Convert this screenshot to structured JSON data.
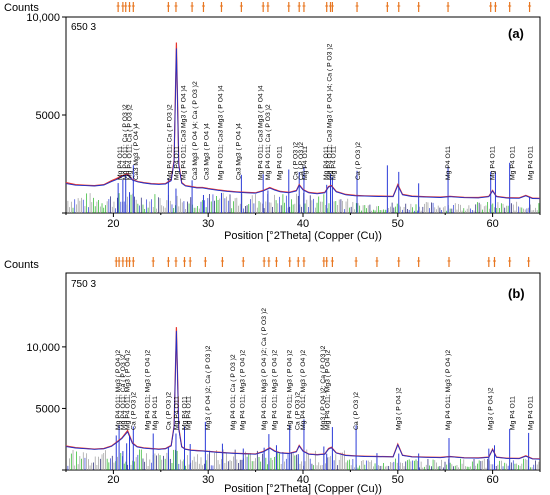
{
  "colors": {
    "frame": "#000000",
    "pattern_ticks": "#e87722",
    "observed": "#e8352c",
    "calculated": "#2030c8",
    "ref_gray": "#9a9a9a",
    "ref_green": "#22b422",
    "ref_blue": "#2a3ad8",
    "ref_navy": "#1a1a70",
    "background": "#ffffff"
  },
  "chart_data": [
    {
      "type": "line",
      "panel_label": "(a)",
      "sample_label": "650 3",
      "title": "",
      "ylabel": "Counts",
      "xlabel": "Position [°2Theta] (Copper (Cu))",
      "xlim": [
        15,
        65
      ],
      "ylim": [
        0,
        10000
      ],
      "x_ticks": [
        "20",
        "30",
        "40",
        "50",
        "60"
      ],
      "y_ticks": [
        "5000",
        "10,000"
      ],
      "grid": false,
      "pattern_ticks": [
        20.5,
        21,
        21.3,
        21.7,
        22.1,
        25.8,
        26.6,
        28.3,
        29.5,
        31.4,
        33.5,
        35.8,
        36.3,
        38.5,
        39.6,
        40.1,
        42.5,
        42.9,
        43.1,
        45.7,
        48.9,
        50.1,
        52.2,
        55.3,
        59.8,
        60.3,
        61.8,
        63.9
      ],
      "series": [
        {
          "role": "observed",
          "x": [
            15,
            16,
            17,
            18,
            19,
            19.8,
            20.3,
            20.9,
            21.5,
            22,
            22.6,
            23.2,
            24,
            24.8,
            25.5,
            26.1,
            26.4,
            26.65,
            26.9,
            27.2,
            27.6,
            28.2,
            28.8,
            29.4,
            30,
            31,
            32,
            33,
            34,
            35,
            35.8,
            36.5,
            37,
            37.6,
            38.5,
            39.3,
            39.6,
            40,
            40.6,
            41.5,
            42.3,
            42.7,
            43,
            43.5,
            44.5,
            45.5,
            46.5,
            48,
            49.5,
            50,
            50.5,
            51.5,
            53,
            54.5,
            55.5,
            57,
            58.5,
            59.6,
            60,
            60.4,
            61.5,
            62.8,
            63.5,
            64.2,
            65
          ],
          "y": [
            1550,
            1450,
            1420,
            1400,
            1450,
            1650,
            1750,
            1900,
            2000,
            1700,
            1600,
            1550,
            1500,
            1480,
            1500,
            1700,
            2700,
            8700,
            2500,
            1550,
            1400,
            1350,
            1300,
            1300,
            1250,
            1180,
            1120,
            1080,
            1050,
            1030,
            1150,
            1300,
            1200,
            1100,
            1050,
            1150,
            1450,
            1200,
            1050,
            1000,
            1050,
            1350,
            1400,
            1100,
            950,
            900,
            880,
            860,
            850,
            1450,
            950,
            860,
            830,
            810,
            850,
            800,
            790,
            850,
            1150,
            850,
            780,
            770,
            900,
            760,
            750
          ]
        },
        {
          "role": "calculated",
          "x": [
            15,
            16,
            17,
            18,
            19,
            19.8,
            20.3,
            20.9,
            21.5,
            22,
            22.6,
            23.2,
            24,
            24.8,
            25.5,
            26.1,
            26.4,
            26.65,
            26.9,
            27.2,
            27.6,
            28.2,
            28.8,
            29.4,
            30,
            31,
            32,
            33,
            34,
            35,
            35.8,
            36.5,
            37,
            37.6,
            38.5,
            39.3,
            39.6,
            40,
            40.6,
            41.5,
            42.3,
            42.7,
            43,
            43.5,
            44.5,
            45.5,
            46.5,
            48,
            49.5,
            50,
            50.5,
            51.5,
            53,
            54.5,
            55.5,
            57,
            58.5,
            59.6,
            60,
            60.4,
            61.5,
            62.8,
            63.5,
            64.2,
            65
          ],
          "y": [
            1500,
            1420,
            1400,
            1380,
            1430,
            1600,
            1700,
            1850,
            1950,
            1680,
            1580,
            1530,
            1480,
            1460,
            1480,
            1650,
            2600,
            8400,
            2400,
            1520,
            1380,
            1330,
            1280,
            1280,
            1230,
            1160,
            1100,
            1060,
            1030,
            1010,
            1120,
            1270,
            1170,
            1080,
            1030,
            1120,
            1420,
            1180,
            1030,
            980,
            1030,
            1320,
            1370,
            1080,
            930,
            880,
            860,
            840,
            830,
            1400,
            930,
            840,
            810,
            790,
            830,
            780,
            770,
            830,
            1120,
            830,
            760,
            750,
            880,
            740,
            730
          ]
        }
      ],
      "peak_labels": [
        {
          "x": 20.7,
          "text": "Mg P4 O11"
        },
        {
          "x": 21.2,
          "text": "Mg P4 O11; Ca ( P O3 )2"
        },
        {
          "x": 21.7,
          "text": "Mg P4 O11; Ca ( P O3 )2"
        },
        {
          "x": 22.4,
          "text": "Ca3 Mg3 ( P O4 )4"
        },
        {
          "x": 25.9,
          "text": "Mg P4 O11; Ca ( P O3 )2"
        },
        {
          "x": 26.65,
          "text": "Mg P4 O11"
        },
        {
          "x": 27.4,
          "text": "Mg P4 O11; Ca3 Mg3 ( P O4 )4"
        },
        {
          "x": 28.6,
          "text": "Ca3 Mg3 ( P O4 )4; Ca ( P O3 )2"
        },
        {
          "x": 29.8,
          "text": "Ca3 Mg3 ( P O4 )4"
        },
        {
          "x": 31.3,
          "text": "Mg P4 O11; Ca3 Mg3 ( P O4 )4"
        },
        {
          "x": 33.2,
          "text": "Ca3 Mg3 ( P O4 )4"
        },
        {
          "x": 35.5,
          "text": "Mg P4 O11; Ca3 Mg3 ( P O4 )4"
        },
        {
          "x": 36.3,
          "text": "Mg P4 O11; Ca ( P O3 )2"
        },
        {
          "x": 37.5,
          "text": "Mg P4 O11"
        },
        {
          "x": 39.2,
          "text": "Ca ( P O3 )2"
        },
        {
          "x": 39.8,
          "text": "Ca ( P O3 )2"
        },
        {
          "x": 40.2,
          "text": "Mg P4 O11"
        },
        {
          "x": 42.4,
          "text": "Mg P4 O11"
        },
        {
          "x": 42.8,
          "text": "Mg P4 O11; Ca3 Mg3 ( P O4 )4; Ca ( P O3 )2"
        },
        {
          "x": 43.2,
          "text": "Mg P4 O11"
        },
        {
          "x": 45.8,
          "text": "Ca ( P O3 )2"
        },
        {
          "x": 55.3,
          "text": "Mg P4 O11"
        },
        {
          "x": 60.0,
          "text": "Mg P4 O11"
        },
        {
          "x": 62.1,
          "text": "Mg P4 O11"
        },
        {
          "x": 64.0,
          "text": "Mg P4 O11"
        }
      ]
    },
    {
      "type": "line",
      "panel_label": "(b)",
      "sample_label": "750 3",
      "title": "",
      "ylabel": "Counts",
      "xlabel": "Position [°2Theta] (Copper (Cu))",
      "xlim": [
        15,
        65
      ],
      "ylim": [
        0,
        16000
      ],
      "x_ticks": [
        "20",
        "30",
        "40",
        "50",
        "60"
      ],
      "y_ticks": [
        "5000",
        "10,000"
      ],
      "grid": false,
      "pattern_ticks": [
        20.3,
        20.6,
        21,
        21.4,
        21.7,
        22.1,
        24.2,
        25.8,
        26.6,
        27.5,
        28.1,
        29.7,
        31.5,
        33.7,
        35.9,
        36.4,
        37.2,
        38.6,
        39.5,
        40.1,
        42.2,
        42.5,
        43.1,
        45.6,
        47.8,
        50.1,
        52.2,
        55.4,
        59.6,
        60.2,
        61.8,
        63.8
      ],
      "series": [
        {
          "role": "observed",
          "x": [
            15,
            16,
            17,
            18,
            19,
            19.8,
            20.4,
            20.9,
            21.5,
            22,
            22.5,
            23.2,
            24,
            24.8,
            25.5,
            26.1,
            26.4,
            26.65,
            26.9,
            27.2,
            27.6,
            28.2,
            28.8,
            29.4,
            30,
            31,
            32,
            33,
            34,
            35,
            35.8,
            36.5,
            37,
            37.6,
            38.5,
            39.3,
            39.6,
            40,
            40.6,
            41.5,
            42.3,
            42.7,
            43,
            43.5,
            44.5,
            45.5,
            46.5,
            48,
            49.5,
            50,
            50.5,
            51.5,
            53,
            54.5,
            55.5,
            57,
            58.5,
            59.6,
            60,
            60.4,
            61.5,
            62.8,
            63.5,
            64.2,
            65
          ],
          "y": [
            1950,
            1820,
            1760,
            1700,
            1750,
            1950,
            2300,
            2600,
            3200,
            2200,
            1900,
            1800,
            1750,
            1700,
            1750,
            2000,
            3600,
            11600,
            3400,
            1900,
            1700,
            1620,
            1580,
            1560,
            1520,
            1450,
            1400,
            1360,
            1330,
            1300,
            1500,
            1800,
            1550,
            1400,
            1350,
            1500,
            2000,
            1550,
            1300,
            1250,
            1300,
            1750,
            1850,
            1400,
            1200,
            1150,
            1120,
            1100,
            1080,
            2100,
            1200,
            1080,
            1050,
            1020,
            1100,
            1000,
            980,
            1050,
            1700,
            1050,
            960,
            940,
            1150,
            920,
            900
          ]
        },
        {
          "role": "calculated",
          "x": [
            15,
            16,
            17,
            18,
            19,
            19.8,
            20.4,
            20.9,
            21.5,
            22,
            22.5,
            23.2,
            24,
            24.8,
            25.5,
            26.1,
            26.4,
            26.65,
            26.9,
            27.2,
            27.6,
            28.2,
            28.8,
            29.4,
            30,
            31,
            32,
            33,
            34,
            35,
            35.8,
            36.5,
            37,
            37.6,
            38.5,
            39.3,
            39.6,
            40,
            40.6,
            41.5,
            42.3,
            42.7,
            43,
            43.5,
            44.5,
            45.5,
            46.5,
            48,
            49.5,
            50,
            50.5,
            51.5,
            53,
            54.5,
            55.5,
            57,
            58.5,
            59.6,
            60,
            60.4,
            61.5,
            62.8,
            63.5,
            64.2,
            65
          ],
          "y": [
            1900,
            1790,
            1730,
            1680,
            1720,
            1920,
            2250,
            2550,
            3100,
            2150,
            1870,
            1770,
            1720,
            1680,
            1720,
            1950,
            3500,
            11300,
            3300,
            1870,
            1680,
            1600,
            1560,
            1540,
            1500,
            1430,
            1380,
            1340,
            1310,
            1280,
            1470,
            1760,
            1520,
            1380,
            1330,
            1470,
            1950,
            1520,
            1280,
            1230,
            1280,
            1700,
            1800,
            1380,
            1180,
            1130,
            1100,
            1080,
            1060,
            2050,
            1180,
            1060,
            1030,
            1000,
            1080,
            980,
            960,
            1030,
            1650,
            1030,
            940,
            920,
            1120,
            900,
            880
          ]
        }
      ],
      "peak_labels": [
        {
          "x": 20.5,
          "text": "Mg P4 O11; Mg3 ( P O4 )2"
        },
        {
          "x": 21.0,
          "text": "Mg P4 O11; Ca ( P O3 )2"
        },
        {
          "x": 21.5,
          "text": "Mg P4 O11; Mg3 ( P O4 )2"
        },
        {
          "x": 22.1,
          "text": "Ca ( P O3 )2"
        },
        {
          "x": 23.6,
          "text": "Mg P4 O11; Mg3 ( P O4 )2"
        },
        {
          "x": 24.4,
          "text": "Mg P4 O11"
        },
        {
          "x": 25.8,
          "text": "Ca ( P O3 )2"
        },
        {
          "x": 26.65,
          "text": "Mg P4 O11"
        },
        {
          "x": 27.5,
          "text": "Mg P4 O11"
        },
        {
          "x": 27.9,
          "text": "Mg P4 O11"
        },
        {
          "x": 30.0,
          "text": "Mg3 ( P O4 )2; Ca ( P O3 )2"
        },
        {
          "x": 32.6,
          "text": "Mg P4 O11; Ca ( P O3 )2"
        },
        {
          "x": 33.6,
          "text": "Mg P4 O11; Mg3 ( P O4 )2"
        },
        {
          "x": 35.9,
          "text": "Mg P4 O11; Mg3 ( P O4 )2; Ca ( P O3 )2"
        },
        {
          "x": 37.0,
          "text": "Mg P4 O11; Mg3 ( P O4 )2"
        },
        {
          "x": 38.6,
          "text": "Mg P4 O11; Mg3 ( P O4 )2"
        },
        {
          "x": 39.4,
          "text": "Ca ( P O3 )2"
        },
        {
          "x": 40.0,
          "text": "Mg P4 O11; Mg3 ( P O4 )2"
        },
        {
          "x": 42.1,
          "text": "Mg3 ( P O4 )2; Ca ( P O3 )2"
        },
        {
          "x": 42.6,
          "text": "Mg P4 O11; Mg3 ( P O4 )2"
        },
        {
          "x": 45.6,
          "text": "Ca ( P O3 )2"
        },
        {
          "x": 50.1,
          "text": "Mg3 ( P O4 )2"
        },
        {
          "x": 55.3,
          "text": "Mg P4 O11; Mg3 ( P O4 )2"
        },
        {
          "x": 59.8,
          "text": "Mg3 ( P O4 )2"
        },
        {
          "x": 62.1,
          "text": "Mg P4 O11"
        },
        {
          "x": 64.0,
          "text": "Mg P4 O11"
        }
      ]
    }
  ]
}
